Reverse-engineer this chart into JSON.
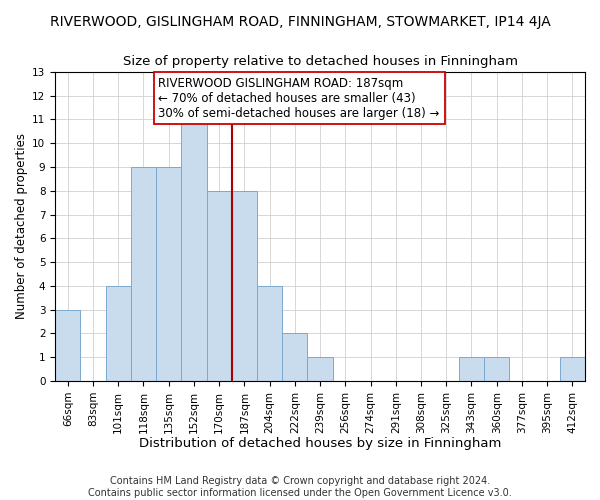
{
  "title": "RIVERWOOD, GISLINGHAM ROAD, FINNINGHAM, STOWMARKET, IP14 4JA",
  "subtitle": "Size of property relative to detached houses in Finningham",
  "xlabel": "Distribution of detached houses by size in Finningham",
  "ylabel": "Number of detached properties",
  "footer_line1": "Contains HM Land Registry data © Crown copyright and database right 2024.",
  "footer_line2": "Contains public sector information licensed under the Open Government Licence v3.0.",
  "bin_labels": [
    "66sqm",
    "83sqm",
    "101sqm",
    "118sqm",
    "135sqm",
    "152sqm",
    "170sqm",
    "187sqm",
    "204sqm",
    "222sqm",
    "239sqm",
    "256sqm",
    "274sqm",
    "291sqm",
    "308sqm",
    "325sqm",
    "343sqm",
    "360sqm",
    "377sqm",
    "395sqm",
    "412sqm"
  ],
  "bar_values": [
    3,
    0,
    4,
    9,
    9,
    11,
    8,
    8,
    4,
    2,
    1,
    0,
    0,
    0,
    0,
    0,
    1,
    1,
    0,
    0,
    1
  ],
  "bar_color": "#c8dced",
  "bar_edge_color": "#7baacf",
  "reference_line_x_label": "187sqm",
  "reference_line_color": "#aa0000",
  "annotation_title": "RIVERWOOD GISLINGHAM ROAD: 187sqm",
  "annotation_line1": "← 70% of detached houses are smaller (43)",
  "annotation_line2": "30% of semi-detached houses are larger (18) →",
  "annotation_box_edge_color": "#cc0000",
  "annotation_box_bg": "#ffffff",
  "ylim": [
    0,
    13
  ],
  "yticks": [
    0,
    1,
    2,
    3,
    4,
    5,
    6,
    7,
    8,
    9,
    10,
    11,
    12,
    13
  ],
  "title_fontsize": 10,
  "subtitle_fontsize": 9.5,
  "xlabel_fontsize": 9.5,
  "ylabel_fontsize": 8.5,
  "tick_fontsize": 7.5,
  "annotation_fontsize": 8.5,
  "footer_fontsize": 7
}
